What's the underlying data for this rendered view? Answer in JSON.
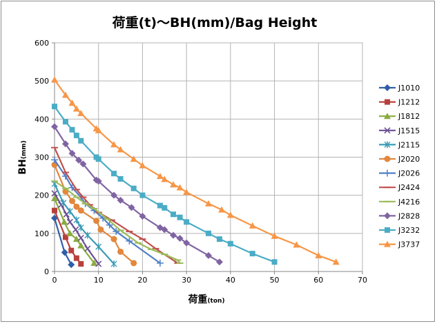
{
  "chart_data": {
    "type": "line",
    "title": "荷重(t)～BH(mm)/Bag Height",
    "xlabel_main": "荷重",
    "xlabel_unit": "(ton)",
    "ylabel_main": "BH",
    "ylabel_unit": "(mm)",
    "xlim": [
      0,
      70
    ],
    "ylim": [
      0,
      600
    ],
    "xticks": [
      0,
      10,
      20,
      30,
      40,
      50,
      60,
      70
    ],
    "yticks": [
      0,
      100,
      200,
      300,
      400,
      500,
      600
    ],
    "grid": true,
    "legend_position": "right",
    "series": [
      {
        "name": "J1010",
        "color": "#2f5fa8",
        "marker": "diamond",
        "x": [
          0,
          2.3,
          3.8
        ],
        "y": [
          140,
          50,
          18
        ]
      },
      {
        "name": "J1212",
        "color": "#b8403c",
        "marker": "square",
        "x": [
          0,
          2.5,
          3.8,
          5.0,
          6.0
        ],
        "y": [
          160,
          90,
          55,
          35,
          20
        ]
      },
      {
        "name": "J1812",
        "color": "#8aab3f",
        "marker": "triangle",
        "x": [
          0,
          2.2,
          3.5,
          5.0,
          6.0,
          9.0
        ],
        "y": [
          192,
          130,
          100,
          85,
          68,
          22
        ]
      },
      {
        "name": "J1515",
        "color": "#6a4f93",
        "marker": "x",
        "x": [
          0,
          1.5,
          2.7,
          3.5,
          4.8,
          6.0,
          7.5,
          10.0
        ],
        "y": [
          205,
          175,
          150,
          130,
          110,
          88,
          60,
          20
        ]
      },
      {
        "name": "J2115",
        "color": "#3a9bb5",
        "marker": "asterisk",
        "x": [
          0,
          2.0,
          3.5,
          5.0,
          6.0,
          7.5,
          10.0,
          13.5
        ],
        "y": [
          230,
          180,
          158,
          135,
          115,
          95,
          65,
          20
        ]
      },
      {
        "name": "J2020",
        "color": "#e2873c",
        "marker": "circle",
        "x": [
          0,
          2.5,
          4.0,
          5.0,
          6.0,
          9.5,
          10.5,
          13.5,
          15.0,
          18.0
        ],
        "y": [
          280,
          210,
          185,
          170,
          160,
          133,
          110,
          85,
          52,
          22
        ]
      },
      {
        "name": "J2026",
        "color": "#4f7fc5",
        "marker": "plus",
        "x": [
          0,
          2.5,
          4.0,
          6.0,
          7.0,
          9.0,
          11.0,
          12.5,
          14.0,
          17.0,
          24.0
        ],
        "y": [
          293,
          250,
          220,
          195,
          178,
          160,
          140,
          122,
          105,
          80,
          22
        ]
      },
      {
        "name": "J2424",
        "color": "#c0504d",
        "marker": "dash",
        "x": [
          0,
          2.5,
          5.0,
          6.5,
          8.0,
          10.0,
          13.0,
          17.0,
          20.0,
          23.0,
          28.0
        ],
        "y": [
          325,
          260,
          215,
          195,
          175,
          155,
          135,
          105,
          85,
          60,
          22
        ]
      },
      {
        "name": "J4216",
        "color": "#9bbb59",
        "marker": "dash",
        "x": [
          0,
          2.5,
          5.0,
          7.0,
          9.0,
          12.0,
          15.0,
          19.0,
          22.0,
          25.0,
          28.0,
          28.5
        ],
        "y": [
          237,
          218,
          195,
          178,
          165,
          138,
          108,
          75,
          58,
          45,
          30,
          22
        ]
      },
      {
        "name": "J2828",
        "color": "#8064a2",
        "marker": "diamond",
        "x": [
          0,
          2.5,
          4.0,
          5.5,
          6.5,
          9.5,
          10.0,
          13.5,
          15.0,
          17.5,
          20.0,
          24.0,
          25.0,
          27.0,
          28.5,
          30.0,
          35.0,
          37.5
        ],
        "y": [
          380,
          335,
          310,
          292,
          282,
          240,
          237,
          200,
          187,
          168,
          145,
          115,
          110,
          95,
          87,
          75,
          42,
          25
        ]
      },
      {
        "name": "J3232",
        "color": "#4bacc6",
        "marker": "square",
        "x": [
          0,
          2.5,
          4.0,
          5.0,
          6.0,
          9.5,
          10.0,
          13.5,
          15.0,
          18.0,
          20.0,
          24.0,
          25.0,
          27.0,
          28.5,
          30.0,
          35.0,
          37.5,
          40.0,
          45.0,
          50.0
        ],
        "y": [
          433,
          393,
          372,
          357,
          343,
          300,
          295,
          257,
          243,
          218,
          200,
          173,
          167,
          150,
          142,
          130,
          100,
          85,
          73,
          47,
          25
        ]
      },
      {
        "name": "J3737",
        "color": "#f79646",
        "marker": "triangle",
        "x": [
          0,
          2.5,
          4.0,
          5.0,
          6.0,
          9.5,
          10.0,
          13.5,
          15.0,
          18.0,
          20.0,
          24.0,
          25.0,
          27.0,
          28.5,
          30.0,
          35.0,
          38.0,
          40.0,
          45.0,
          50.0,
          55.0,
          60.0,
          64.0
        ],
        "y": [
          503,
          463,
          442,
          427,
          415,
          375,
          370,
          333,
          320,
          295,
          278,
          250,
          242,
          228,
          220,
          208,
          178,
          162,
          148,
          120,
          93,
          70,
          42,
          25
        ]
      }
    ]
  }
}
